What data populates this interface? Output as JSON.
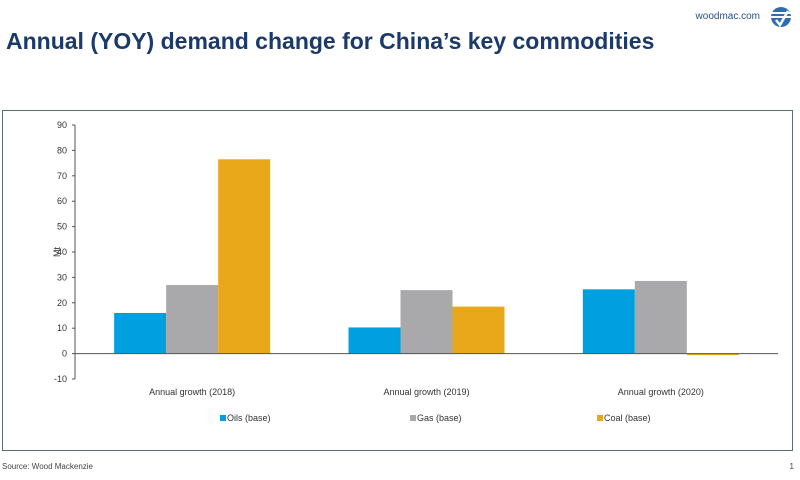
{
  "header": {
    "title": "Annual (YOY) demand change for China’s key commodities",
    "brand_url": "woodmac.com",
    "logo_icon": "woodmac-logo-icon"
  },
  "footer": {
    "source": "Source: Wood Mackenzie",
    "page_number": "1"
  },
  "chart_data": {
    "type": "bar",
    "title": "Annual (YOY) demand change for China’s key commodities",
    "xlabel": "",
    "ylabel": "Mt",
    "ylim": [
      -10,
      90
    ],
    "yticks": [
      -10,
      0,
      10,
      20,
      30,
      40,
      50,
      60,
      70,
      80,
      90
    ],
    "grid": false,
    "legend_position": "bottom",
    "categories": [
      "Annual growth (2018)",
      "Annual growth (2019)",
      "Annual growth (2020)"
    ],
    "series": [
      {
        "name": "Oils (base)",
        "color": "#009fe0",
        "values": [
          16,
          10.3,
          25.3
        ]
      },
      {
        "name": "Gas (base)",
        "color": "#a9a9ab",
        "values": [
          27,
          25,
          28.6
        ]
      },
      {
        "name": "Coal (base)",
        "color": "#e8a81a",
        "values": [
          76.5,
          18.5,
          -0.5
        ]
      }
    ]
  }
}
